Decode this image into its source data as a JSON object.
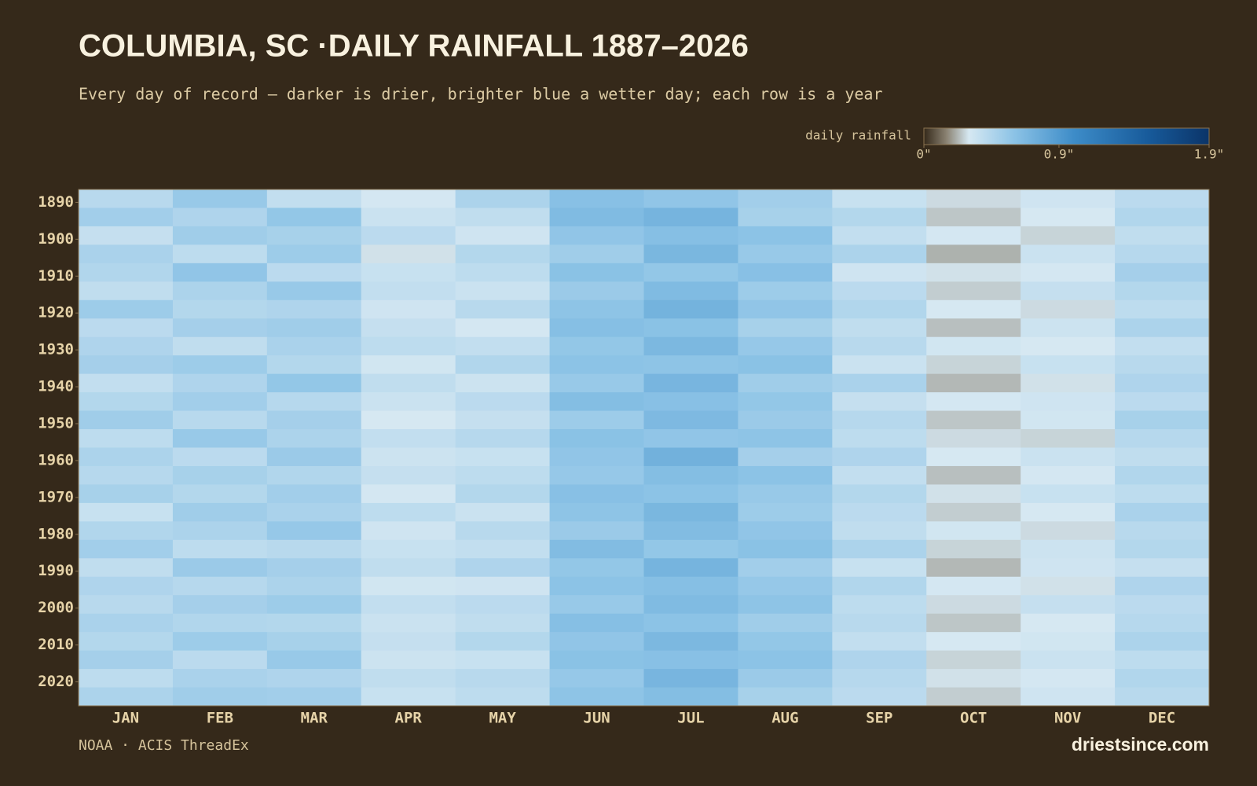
{
  "chart_data": {
    "type": "heatmap",
    "title": "COLUMBIA, SC ·DAILY RAINFALL 1887–2026",
    "subtitle": "Every day of record — darker is drier, brighter blue a wetter day; each row is a year",
    "colorbar_label": "daily rainfall",
    "colorbar_ticks": [
      {
        "value": 0,
        "label": "0\""
      },
      {
        "value": 0.9,
        "label": "0.9\""
      },
      {
        "value": 1.9,
        "label": "1.9\""
      }
    ],
    "colorbar_lim": [
      0,
      1.9
    ],
    "color_stops": [
      {
        "value": 0,
        "color": "#35291a"
      },
      {
        "value": 0.15,
        "color": "#8a8272"
      },
      {
        "value": 0.3,
        "color": "#d6e8f2"
      },
      {
        "value": 0.6,
        "color": "#8cc3e6"
      },
      {
        "value": 1.0,
        "color": "#3d8cc8"
      },
      {
        "value": 1.5,
        "color": "#175a9a"
      },
      {
        "value": 1.9,
        "color": "#0b3468"
      }
    ],
    "x": [
      "JAN",
      "FEB",
      "MAR",
      "APR",
      "MAY",
      "JUN",
      "JUL",
      "AUG",
      "SEP",
      "OCT",
      "NOV",
      "DEC"
    ],
    "y": [
      1887,
      1892,
      1897,
      1902,
      1907,
      1912,
      1917,
      1922,
      1927,
      1932,
      1937,
      1942,
      1947,
      1952,
      1957,
      1962,
      1967,
      1972,
      1977,
      1982,
      1987,
      1992,
      1997,
      2002,
      2007,
      2012,
      2017,
      2022
    ],
    "ylim": [
      1887,
      2027
    ],
    "yticks": [
      1890,
      1900,
      1910,
      1920,
      1930,
      1940,
      1950,
      1960,
      1970,
      1980,
      1990,
      2000,
      2010,
      2020
    ],
    "values": [
      [
        0.42,
        0.55,
        0.38,
        0.31,
        0.47,
        0.62,
        0.58,
        0.51,
        0.36,
        0.28,
        0.33,
        0.41
      ],
      [
        0.51,
        0.46,
        0.57,
        0.35,
        0.39,
        0.66,
        0.71,
        0.49,
        0.44,
        0.25,
        0.3,
        0.45
      ],
      [
        0.37,
        0.52,
        0.49,
        0.41,
        0.33,
        0.58,
        0.63,
        0.6,
        0.38,
        0.31,
        0.27,
        0.39
      ],
      [
        0.48,
        0.4,
        0.53,
        0.29,
        0.44,
        0.52,
        0.69,
        0.55,
        0.47,
        0.22,
        0.35,
        0.43
      ],
      [
        0.45,
        0.58,
        0.41,
        0.36,
        0.4,
        0.61,
        0.57,
        0.62,
        0.33,
        0.29,
        0.31,
        0.5
      ],
      [
        0.39,
        0.47,
        0.55,
        0.38,
        0.35,
        0.54,
        0.66,
        0.53,
        0.41,
        0.26,
        0.37,
        0.44
      ],
      [
        0.53,
        0.44,
        0.46,
        0.33,
        0.42,
        0.59,
        0.72,
        0.58,
        0.45,
        0.3,
        0.28,
        0.4
      ],
      [
        0.41,
        0.5,
        0.52,
        0.37,
        0.31,
        0.63,
        0.61,
        0.49,
        0.39,
        0.24,
        0.34,
        0.47
      ],
      [
        0.46,
        0.39,
        0.48,
        0.4,
        0.38,
        0.57,
        0.68,
        0.56,
        0.42,
        0.32,
        0.3,
        0.38
      ],
      [
        0.5,
        0.53,
        0.44,
        0.32,
        0.45,
        0.6,
        0.59,
        0.61,
        0.35,
        0.27,
        0.36,
        0.42
      ],
      [
        0.38,
        0.46,
        0.57,
        0.39,
        0.34,
        0.55,
        0.7,
        0.52,
        0.48,
        0.23,
        0.29,
        0.46
      ],
      [
        0.44,
        0.51,
        0.43,
        0.35,
        0.41,
        0.64,
        0.62,
        0.57,
        0.37,
        0.31,
        0.33,
        0.41
      ],
      [
        0.52,
        0.42,
        0.5,
        0.3,
        0.37,
        0.53,
        0.67,
        0.54,
        0.43,
        0.25,
        0.32,
        0.49
      ],
      [
        0.4,
        0.55,
        0.47,
        0.38,
        0.43,
        0.61,
        0.58,
        0.59,
        0.4,
        0.28,
        0.27,
        0.43
      ],
      [
        0.47,
        0.41,
        0.54,
        0.34,
        0.36,
        0.58,
        0.73,
        0.5,
        0.46,
        0.3,
        0.35,
        0.39
      ],
      [
        0.43,
        0.49,
        0.45,
        0.37,
        0.4,
        0.56,
        0.64,
        0.6,
        0.38,
        0.24,
        0.31,
        0.45
      ],
      [
        0.49,
        0.44,
        0.51,
        0.31,
        0.44,
        0.62,
        0.6,
        0.55,
        0.44,
        0.29,
        0.36,
        0.4
      ],
      [
        0.36,
        0.52,
        0.48,
        0.4,
        0.35,
        0.59,
        0.69,
        0.53,
        0.41,
        0.26,
        0.3,
        0.48
      ],
      [
        0.45,
        0.47,
        0.56,
        0.33,
        0.42,
        0.54,
        0.65,
        0.58,
        0.39,
        0.32,
        0.28,
        0.42
      ],
      [
        0.51,
        0.4,
        0.42,
        0.36,
        0.38,
        0.65,
        0.57,
        0.61,
        0.47,
        0.27,
        0.34,
        0.44
      ],
      [
        0.39,
        0.54,
        0.5,
        0.39,
        0.46,
        0.57,
        0.71,
        0.51,
        0.36,
        0.23,
        0.33,
        0.37
      ],
      [
        0.46,
        0.43,
        0.47,
        0.32,
        0.33,
        0.6,
        0.63,
        0.56,
        0.45,
        0.31,
        0.29,
        0.46
      ],
      [
        0.42,
        0.5,
        0.53,
        0.38,
        0.41,
        0.55,
        0.66,
        0.59,
        0.4,
        0.28,
        0.37,
        0.41
      ],
      [
        0.48,
        0.45,
        0.44,
        0.35,
        0.39,
        0.63,
        0.6,
        0.52,
        0.42,
        0.25,
        0.3,
        0.43
      ],
      [
        0.44,
        0.53,
        0.49,
        0.37,
        0.44,
        0.58,
        0.68,
        0.57,
        0.38,
        0.3,
        0.32,
        0.47
      ],
      [
        0.5,
        0.41,
        0.55,
        0.34,
        0.36,
        0.61,
        0.62,
        0.6,
        0.46,
        0.27,
        0.35,
        0.4
      ],
      [
        0.4,
        0.48,
        0.46,
        0.39,
        0.42,
        0.56,
        0.7,
        0.54,
        0.43,
        0.29,
        0.31,
        0.45
      ],
      [
        0.47,
        0.52,
        0.51,
        0.36,
        0.4,
        0.59,
        0.64,
        0.49,
        0.41,
        0.26,
        0.33,
        0.42
      ]
    ],
    "source": "NOAA · ACIS ThreadEx",
    "site": "driestsince.com"
  }
}
